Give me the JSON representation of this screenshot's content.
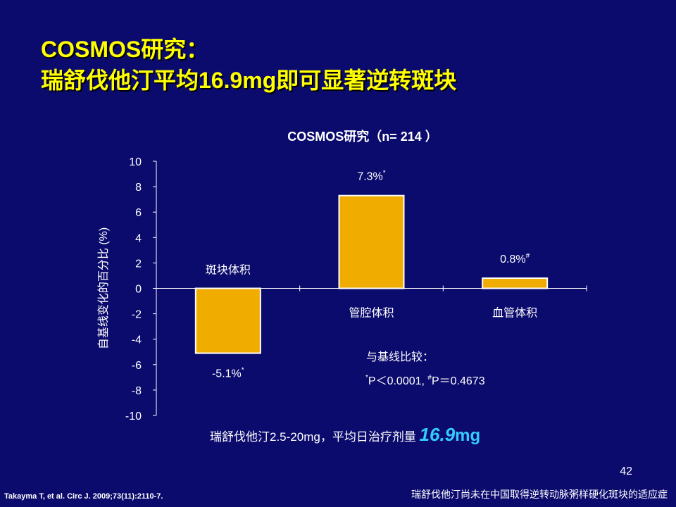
{
  "slide": {
    "title_line1": "COSMOS研究：",
    "title_line2": "瑞舒伐他汀平均16.9mg即可显著逆转斑块",
    "page_number": "42",
    "citation": "Takayma T, et al. Circ J. 2009;73(11):2110-7.",
    "disclaimer": "瑞舒伐他汀尚未在中国取得逆转动脉粥样硬化斑块的适应症"
  },
  "chart_data": {
    "type": "bar",
    "title": "COSMOS研究（n= 214 ）",
    "ylabel": "自基线变化的百分比 (%)",
    "categories": [
      "斑块体积",
      "管腔体积",
      "血管体积"
    ],
    "values": [
      -5.1,
      7.3,
      0.8
    ],
    "value_labels": [
      "-5.1%",
      "7.3%",
      "0.8%"
    ],
    "value_label_marks": [
      "*",
      "*",
      "#"
    ],
    "ylim": [
      -10,
      10
    ],
    "yticks": [
      10,
      8,
      6,
      4,
      2,
      0,
      -2,
      -4,
      -6,
      -8,
      -10
    ],
    "grid": false,
    "bar_color": "#f0ad00",
    "comparison_note": {
      "heading": "与基线比较：",
      "p1_mark": "*",
      "p1_text": "P＜0.0001,",
      "p2_mark": "#",
      "p2_text": "P＝0.4673"
    },
    "dose_note": {
      "text": "瑞舒伐他汀2.5-20mg，平均日治疗剂量",
      "highlight_number": "16.9",
      "highlight_unit": "mg"
    }
  }
}
